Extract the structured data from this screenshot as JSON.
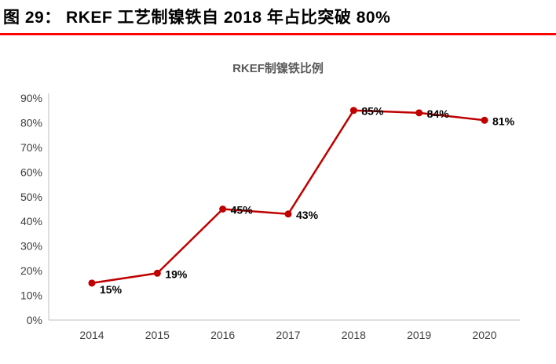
{
  "header": {
    "title": "图 29： RKEF 工艺制镍铁自 2018 年占比突破 80%"
  },
  "chart_data": {
    "type": "line",
    "title": "RKEF制镍铁比例",
    "categories": [
      "2014",
      "2015",
      "2016",
      "2017",
      "2018",
      "2019",
      "2020"
    ],
    "values": [
      15,
      19,
      45,
      43,
      85,
      84,
      81
    ],
    "point_labels": [
      "15%",
      "19%",
      "45%",
      "43%",
      "85%",
      "84%",
      "81%"
    ],
    "xlabel": "",
    "ylabel": "",
    "ylim": [
      0,
      90
    ],
    "ytick_labels": [
      "0%",
      "10%",
      "20%",
      "30%",
      "40%",
      "50%",
      "60%",
      "70%",
      "80%",
      "90%"
    ],
    "grid": "off",
    "legend": "none",
    "line_color": "#c00000",
    "marker_color": "#c00000",
    "axis_color": "#bfbfbf"
  }
}
